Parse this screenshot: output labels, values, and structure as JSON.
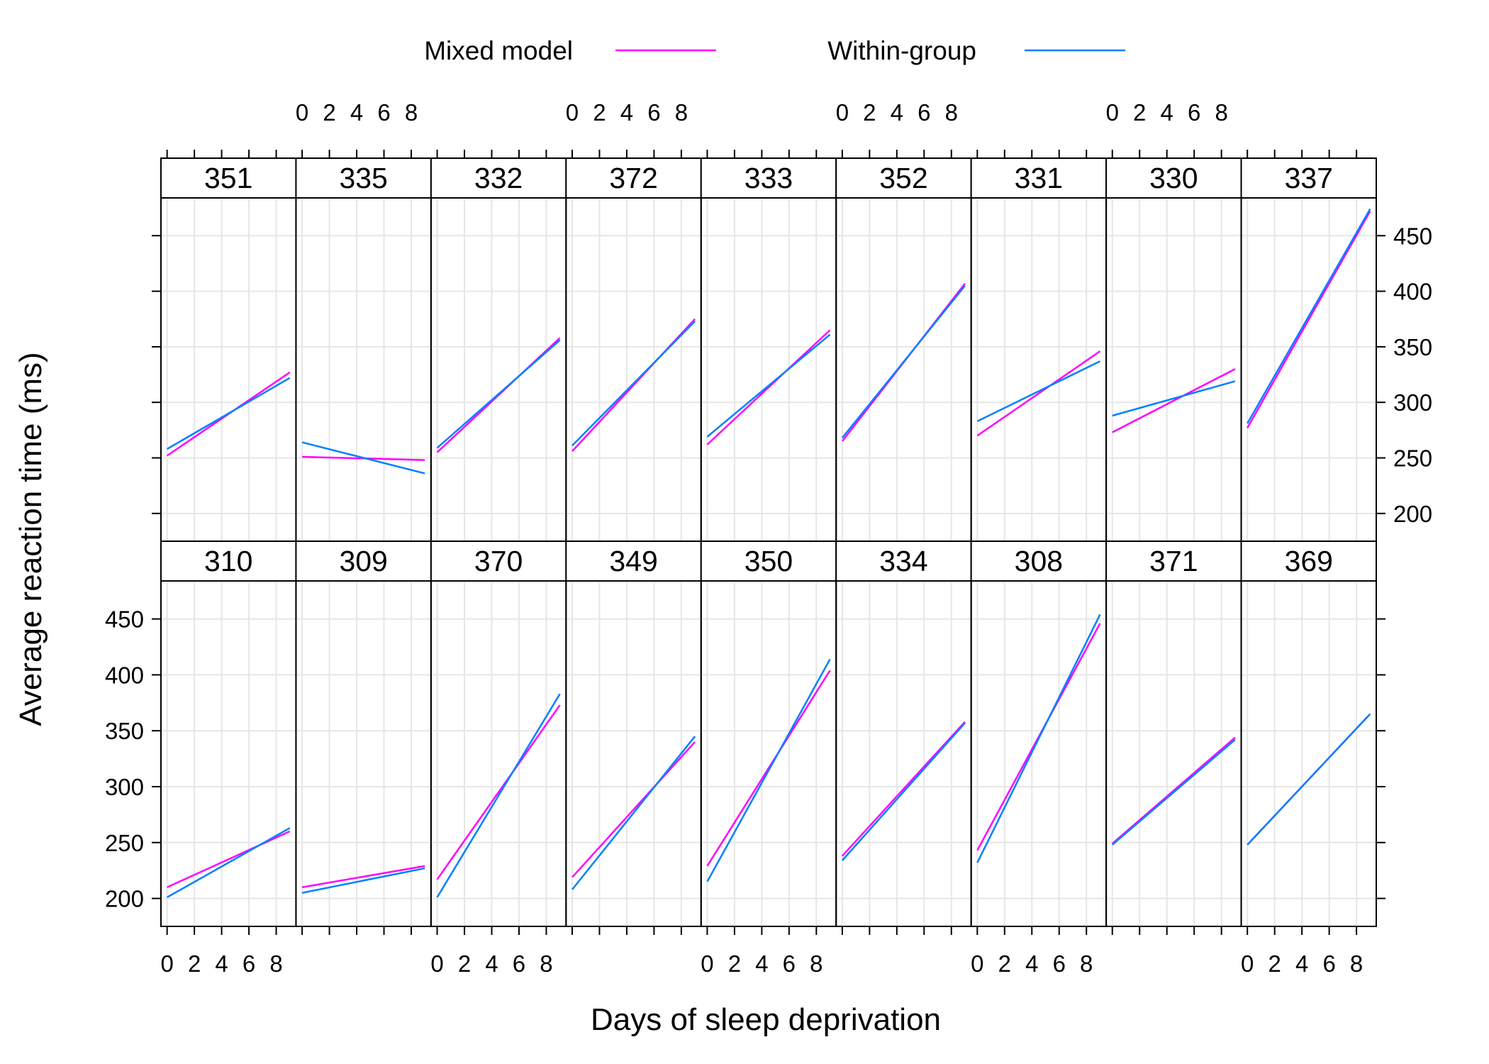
{
  "chart_data": {
    "type": "line",
    "xlabel": "Days of sleep deprivation",
    "ylabel": "Average reaction time (ms)",
    "xlim": [
      -0.45,
      9.45
    ],
    "ylim": [
      175,
      484
    ],
    "x_ticks": [
      0,
      2,
      4,
      6,
      8
    ],
    "y_ticks": [
      200,
      250,
      300,
      350,
      400,
      450
    ],
    "grid": true,
    "legend_position": "top",
    "legend": [
      {
        "label": "Mixed model",
        "color": "#ff00ff"
      },
      {
        "label": "Within-group",
        "color": "#0080ff"
      }
    ],
    "x_range_of_lines": [
      0,
      9
    ],
    "panels": [
      {
        "id": "351",
        "row": "top",
        "mixed": [
          252,
          327
        ],
        "within": [
          258,
          322
        ]
      },
      {
        "id": "335",
        "row": "top",
        "mixed": [
          251,
          248
        ],
        "within": [
          264,
          236
        ]
      },
      {
        "id": "332",
        "row": "top",
        "mixed": [
          255,
          358
        ],
        "within": [
          259,
          356
        ]
      },
      {
        "id": "372",
        "row": "top",
        "mixed": [
          256,
          375
        ],
        "within": [
          261,
          373
        ]
      },
      {
        "id": "333",
        "row": "top",
        "mixed": [
          262,
          365
        ],
        "within": [
          269,
          361
        ]
      },
      {
        "id": "352",
        "row": "top",
        "mixed": [
          265,
          407
        ],
        "within": [
          268,
          405
        ]
      },
      {
        "id": "331",
        "row": "top",
        "mixed": [
          270,
          346
        ],
        "within": [
          283,
          337
        ]
      },
      {
        "id": "330",
        "row": "top",
        "mixed": [
          273,
          330
        ],
        "within": [
          288,
          319
        ]
      },
      {
        "id": "337",
        "row": "top",
        "mixed": [
          277,
          472
        ],
        "within": [
          281,
          474
        ]
      },
      {
        "id": "310",
        "row": "bottom",
        "mixed": [
          210,
          260
        ],
        "within": [
          201,
          263
        ]
      },
      {
        "id": "309",
        "row": "bottom",
        "mixed": [
          210,
          229
        ],
        "within": [
          205,
          227
        ]
      },
      {
        "id": "370",
        "row": "bottom",
        "mixed": [
          217,
          373
        ],
        "within": [
          201,
          383
        ]
      },
      {
        "id": "349",
        "row": "bottom",
        "mixed": [
          219,
          340
        ],
        "within": [
          208,
          345
        ]
      },
      {
        "id": "350",
        "row": "bottom",
        "mixed": [
          229,
          404
        ],
        "within": [
          215,
          414
        ]
      },
      {
        "id": "334",
        "row": "bottom",
        "mixed": [
          238,
          358
        ],
        "within": [
          234,
          357
        ]
      },
      {
        "id": "308",
        "row": "bottom",
        "mixed": [
          243,
          446
        ],
        "within": [
          232,
          454
        ]
      },
      {
        "id": "371",
        "row": "bottom",
        "mixed": [
          249,
          344
        ],
        "within": [
          248,
          342
        ]
      },
      {
        "id": "369",
        "row": "bottom",
        "mixed": [
          248,
          365
        ],
        "within": [
          248,
          365
        ]
      }
    ]
  }
}
